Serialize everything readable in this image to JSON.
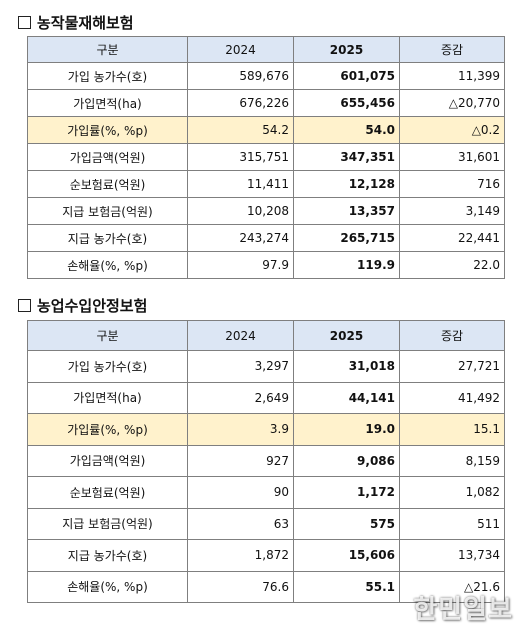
{
  "section1": {
    "title": "농작물재해보험",
    "headers": [
      "구분",
      "2024",
      "2025",
      "증감"
    ],
    "rows": [
      {
        "label": "가입 농가수(호)",
        "v2024": "589,676",
        "v2025": "601,075",
        "change": "11,399"
      },
      {
        "label": "가입면적(ha)",
        "v2024": "676,226",
        "v2025": "655,456",
        "change": "△20,770"
      },
      {
        "label": "가입률(%, %p)",
        "v2024": "54.2",
        "v2025": "54.0",
        "change": "△0.2"
      },
      {
        "label": "가입금액(억원)",
        "v2024": "315,751",
        "v2025": "347,351",
        "change": "31,601"
      },
      {
        "label": "순보험료(억원)",
        "v2024": "11,411",
        "v2025": "12,128",
        "change": "716"
      },
      {
        "label": "지급 보험금(억원)",
        "v2024": "10,208",
        "v2025": "13,357",
        "change": "3,149"
      },
      {
        "label": "지급 농가수(호)",
        "v2024": "243,274",
        "v2025": "265,715",
        "change": "22,441"
      },
      {
        "label": "손해율(%, %p)",
        "v2024": "97.9",
        "v2025": "119.9",
        "change": "22.0"
      }
    ]
  },
  "section2": {
    "title": "농업수입안정보험",
    "headers": [
      "구분",
      "2024",
      "2025",
      "증감"
    ],
    "rows": [
      {
        "label": "가입 농가수(호)",
        "v2024": "3,297",
        "v2025": "31,018",
        "change": "27,721"
      },
      {
        "label": "가입면적(ha)",
        "v2024": "2,649",
        "v2025": "44,141",
        "change": "41,492"
      },
      {
        "label": "가입률(%, %p)",
        "v2024": "3.9",
        "v2025": "19.0",
        "change": "15.1"
      },
      {
        "label": "가입금액(억원)",
        "v2024": "927",
        "v2025": "9,086",
        "change": "8,159"
      },
      {
        "label": "순보험료(억원)",
        "v2024": "90",
        "v2025": "1,172",
        "change": "1,082"
      },
      {
        "label": "지급 보험금(억원)",
        "v2024": "63",
        "v2025": "575",
        "change": "511"
      },
      {
        "label": "지급 농가수(호)",
        "v2024": "1,872",
        "v2025": "15,606",
        "change": "13,734"
      },
      {
        "label": "손해율(%, %p)",
        "v2024": "76.6",
        "v2025": "55.1",
        "change": "△21.6"
      }
    ]
  },
  "watermark": "한민일보"
}
